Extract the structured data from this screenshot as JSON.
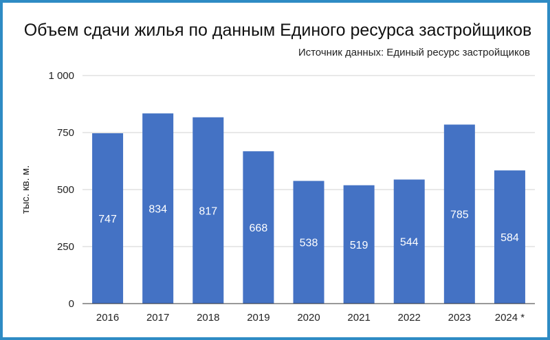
{
  "chart_data": {
    "type": "bar",
    "title": "Объем сдачи жилья по данным Единого ресурса застройщиков",
    "subtitle": "Источник данных: Единый ресурс застройщиков",
    "xlabel": "",
    "ylabel": "тыс. кв. м.",
    "categories": [
      "2016",
      "2017",
      "2018",
      "2019",
      "2020",
      "2021",
      "2022",
      "2023",
      "2024 *"
    ],
    "values": [
      747,
      834,
      817,
      668,
      538,
      519,
      544,
      785,
      584
    ],
    "ylim": [
      0,
      1000
    ],
    "yticks": [
      0,
      250,
      500,
      750,
      1000
    ],
    "ytick_labels": [
      "0",
      "250",
      "500",
      "750",
      "1 000"
    ],
    "data_labels": [
      "747",
      "834",
      "817",
      "668",
      "538",
      "519",
      "544",
      "785",
      "584"
    ],
    "grid": true,
    "legend": "none",
    "colors": {
      "bar": "#4472c4",
      "frame": "#2e8bc4",
      "grid": "#d0d0d0",
      "axis": "#333333"
    }
  }
}
